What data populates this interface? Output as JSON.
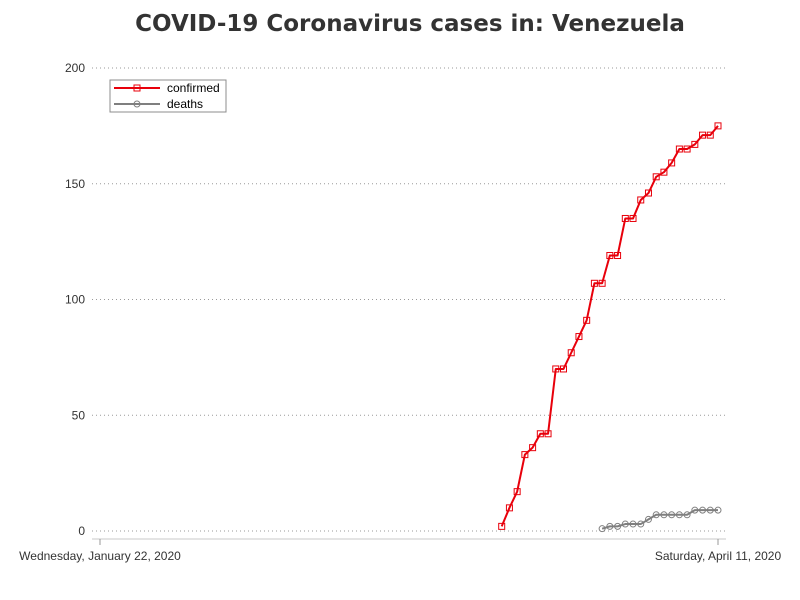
{
  "chart_data": {
    "type": "line",
    "title": "COVID-19 Coronavirus cases in: Venezuela",
    "xlabel": "",
    "ylabel": "",
    "x_start": "2020-01-22",
    "x_end": "2020-04-11",
    "x_tick_labels": [
      "Wednesday, January 22, 2020",
      "Saturday, April 11, 2020"
    ],
    "ylim": [
      0,
      200
    ],
    "y_ticks": [
      0,
      50,
      100,
      150,
      200
    ],
    "grid": true,
    "legend_position": "top-left",
    "series": [
      {
        "name": "confirmed",
        "color": "#e8000b",
        "marker": "square",
        "points": [
          [
            "2020-03-14",
            2
          ],
          [
            "2020-03-15",
            10
          ],
          [
            "2020-03-16",
            17
          ],
          [
            "2020-03-17",
            33
          ],
          [
            "2020-03-18",
            36
          ],
          [
            "2020-03-19",
            42
          ],
          [
            "2020-03-20",
            42
          ],
          [
            "2020-03-21",
            70
          ],
          [
            "2020-03-22",
            70
          ],
          [
            "2020-03-23",
            77
          ],
          [
            "2020-03-24",
            84
          ],
          [
            "2020-03-25",
            91
          ],
          [
            "2020-03-26",
            107
          ],
          [
            "2020-03-27",
            107
          ],
          [
            "2020-03-28",
            119
          ],
          [
            "2020-03-29",
            119
          ],
          [
            "2020-03-30",
            135
          ],
          [
            "2020-03-31",
            135
          ],
          [
            "2020-04-01",
            143
          ],
          [
            "2020-04-02",
            146
          ],
          [
            "2020-04-03",
            153
          ],
          [
            "2020-04-04",
            155
          ],
          [
            "2020-04-05",
            159
          ],
          [
            "2020-04-06",
            165
          ],
          [
            "2020-04-07",
            165
          ],
          [
            "2020-04-08",
            167
          ],
          [
            "2020-04-09",
            171
          ],
          [
            "2020-04-10",
            171
          ],
          [
            "2020-04-11",
            175
          ]
        ]
      },
      {
        "name": "deaths",
        "color": "#7f7f7f",
        "marker": "circle",
        "points": [
          [
            "2020-03-27",
            1
          ],
          [
            "2020-03-28",
            2
          ],
          [
            "2020-03-29",
            2
          ],
          [
            "2020-03-30",
            3
          ],
          [
            "2020-03-31",
            3
          ],
          [
            "2020-04-01",
            3
          ],
          [
            "2020-04-02",
            5
          ],
          [
            "2020-04-03",
            7
          ],
          [
            "2020-04-04",
            7
          ],
          [
            "2020-04-05",
            7
          ],
          [
            "2020-04-06",
            7
          ],
          [
            "2020-04-07",
            7
          ],
          [
            "2020-04-08",
            9
          ],
          [
            "2020-04-09",
            9
          ],
          [
            "2020-04-10",
            9
          ],
          [
            "2020-04-11",
            9
          ]
        ]
      }
    ]
  }
}
